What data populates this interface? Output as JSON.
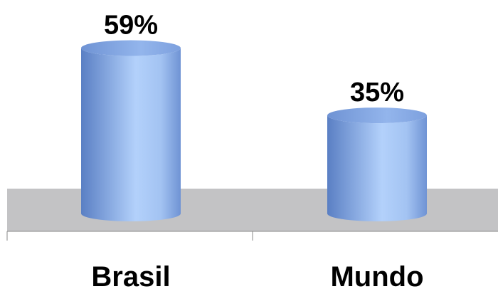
{
  "chart_data": {
    "type": "bar",
    "style": "3d-cylinder",
    "categories": [
      "Brasil",
      "Mundo"
    ],
    "values": [
      59,
      35
    ],
    "data_labels": [
      "59%",
      "35%"
    ],
    "ylim": [
      0,
      100
    ],
    "grid": false,
    "legend": "none",
    "title": "",
    "xlabel": "",
    "ylabel": ""
  },
  "colors": {
    "bar_dark": "#5e84c8",
    "bar_light": "#b8d4fb",
    "bar_top": "#7ea2e0",
    "floor": "#c3c3c5",
    "axis": "#8a8a8a"
  }
}
